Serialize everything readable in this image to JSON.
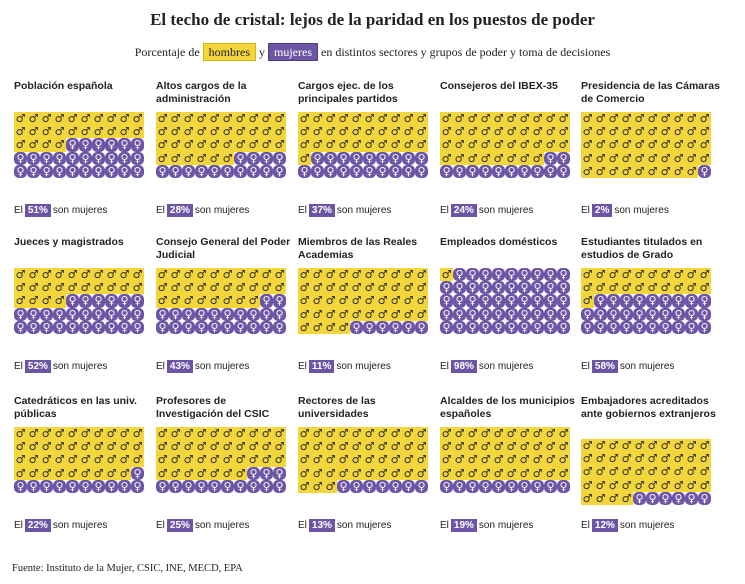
{
  "title": "El techo de cristal: lejos de la paridad en los puestos de poder",
  "subtitle": {
    "prefix": "Porcentaje de",
    "men": "hombres",
    "joiner": "y",
    "women": "mujeres",
    "suffix": "en distintos sectores y grupos de poder y toma de decisiones"
  },
  "labels": {
    "pct_prefix": "El",
    "pct_suffix": "son mujeres",
    "men_symbol": "♂",
    "women_symbol": "♀"
  },
  "source": "Fuente: Instituto de la Mujer, CSIC, INE, MECD, EPA",
  "colors": {
    "men": "#f2d63c",
    "women": "#6d55a6"
  },
  "chart_data": {
    "type": "waffle",
    "grid": {
      "rows": 5,
      "columns": 10
    },
    "units": "percent women",
    "panels": [
      {
        "title": "Población española",
        "women_pct": 51,
        "label": "51%"
      },
      {
        "title": "Altos cargos de la administración",
        "women_pct": 28,
        "label": "28%"
      },
      {
        "title": "Cargos ejec. de los principales partidos",
        "women_pct": 37,
        "label": "37%"
      },
      {
        "title": "Consejeros del IBEX-35",
        "women_pct": 24,
        "label": "24%"
      },
      {
        "title": "Presidencia de las Cámaras de Comercio",
        "women_pct": 2,
        "label": "2%"
      },
      {
        "title": "Jueces y magistrados",
        "women_pct": 52,
        "label": "52%"
      },
      {
        "title": "Consejo General del Poder Judicial",
        "women_pct": 43,
        "label": "43%"
      },
      {
        "title": "Miembros de las Reales Academias",
        "women_pct": 11,
        "label": "11%"
      },
      {
        "title": "Empleados domésticos",
        "women_pct": 98,
        "label": "98%"
      },
      {
        "title": "Estudiantes titulados en estudios de Grado",
        "women_pct": 58,
        "label": "58%"
      },
      {
        "title": "Catedráticos en las univ. públicas",
        "women_pct": 22,
        "label": "22%"
      },
      {
        "title": "Profesores de Investigación del CSIC",
        "women_pct": 25,
        "label": "25%"
      },
      {
        "title": "Rectores de las universidades",
        "women_pct": 13,
        "label": "13%"
      },
      {
        "title": "Alcaldes de los municipios españoles",
        "women_pct": 19,
        "label": "19%"
      },
      {
        "title": "Embajadores acreditados ante gobiernos extranjeros",
        "women_pct": 12,
        "label": "12%"
      }
    ]
  }
}
